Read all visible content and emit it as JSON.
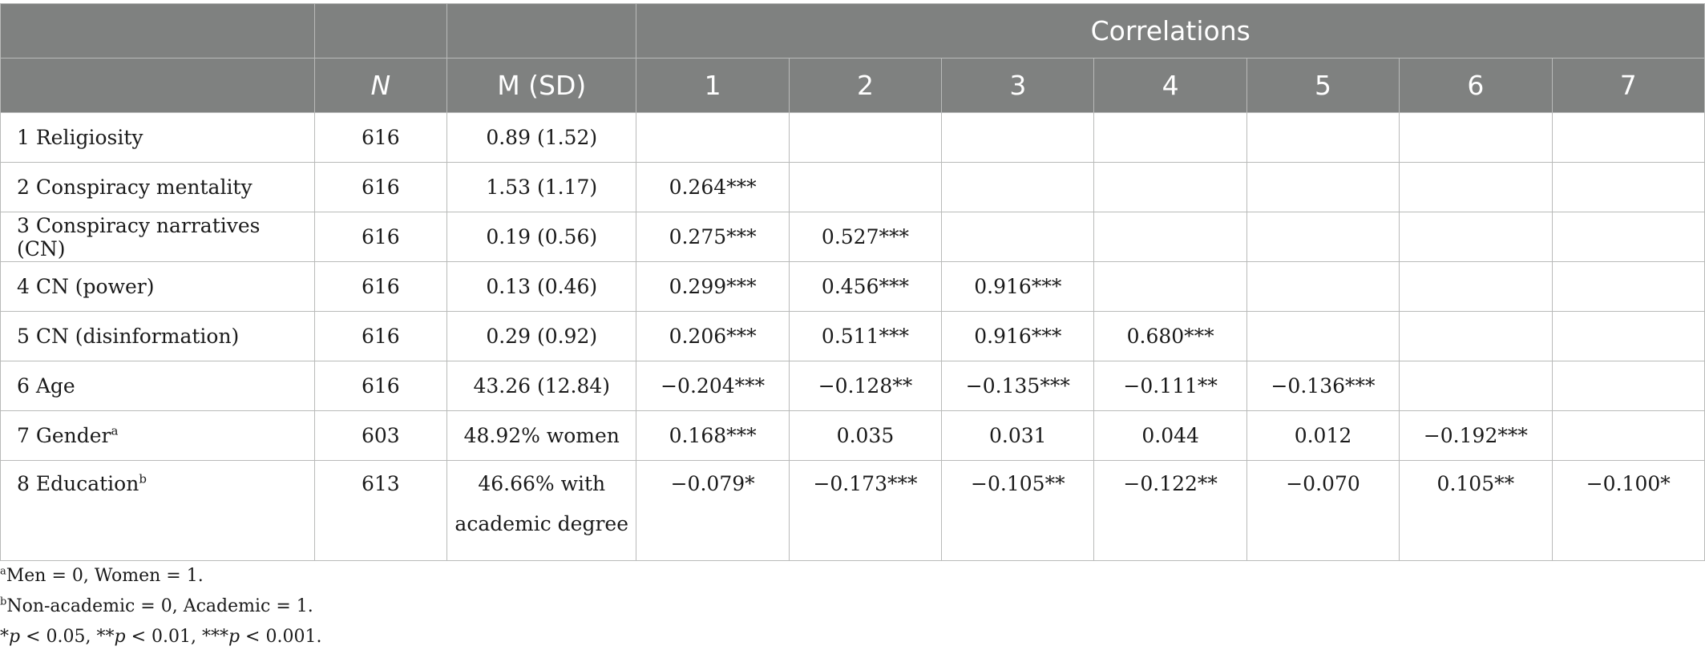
{
  "header": {
    "group_label": "Correlations",
    "n_label": "N",
    "mean_label": "M (SD)",
    "columns": [
      "1",
      "2",
      "3",
      "4",
      "5",
      "6",
      "7"
    ]
  },
  "rows": [
    {
      "label": "1 Religiosity",
      "sup": "",
      "n": "616",
      "mean": "0.89 (1.52)",
      "mean2": "",
      "cells": [
        "",
        "",
        "",
        "",
        "",
        "",
        ""
      ]
    },
    {
      "label": "2 Conspiracy mentality",
      "sup": "",
      "n": "616",
      "mean": "1.53 (1.17)",
      "mean2": "",
      "cells": [
        "0.264***",
        "",
        "",
        "",
        "",
        "",
        ""
      ]
    },
    {
      "label": "3 Conspiracy narratives (CN)",
      "sup": "",
      "n": "616",
      "mean": "0.19 (0.56)",
      "mean2": "",
      "cells": [
        "0.275***",
        "0.527***",
        "",
        "",
        "",
        "",
        ""
      ]
    },
    {
      "label": "4 CN (power)",
      "sup": "",
      "n": "616",
      "mean": "0.13 (0.46)",
      "mean2": "",
      "cells": [
        "0.299***",
        "0.456***",
        "0.916***",
        "",
        "",
        "",
        ""
      ]
    },
    {
      "label": "5 CN (disinformation)",
      "sup": "",
      "n": "616",
      "mean": "0.29 (0.92)",
      "mean2": "",
      "cells": [
        "0.206***",
        "0.511***",
        "0.916***",
        "0.680***",
        "",
        "",
        ""
      ]
    },
    {
      "label": "6 Age",
      "sup": "",
      "n": "616",
      "mean": "43.26 (12.84)",
      "mean2": "",
      "cells": [
        "−0.204***",
        "−0.128**",
        "−0.135***",
        "−0.111**",
        "−0.136***",
        "",
        ""
      ]
    },
    {
      "label": "7 Gender",
      "sup": "a",
      "n": "603",
      "mean": "48.92% women",
      "mean2": "",
      "cells": [
        "0.168***",
        "0.035",
        "0.031",
        "0.044",
        "0.012",
        "−0.192***",
        ""
      ]
    },
    {
      "label": "8 Education",
      "sup": "b",
      "n": "613",
      "mean": "46.66% with",
      "mean2": "academic degree",
      "cells": [
        "−0.079*",
        "−0.173***",
        "−0.105**",
        "−0.122**",
        "−0.070",
        "0.105**",
        "−0.100*"
      ]
    }
  ],
  "notes": {
    "a_sup": "a",
    "a_text": "Men = 0, Women = 1.",
    "b_sup": "b",
    "b_text": "Non-academic = 0, Academic = 1.",
    "sig_parts": [
      "*",
      "p",
      " < 0.05, **",
      "p",
      " < 0.01, ***",
      "p",
      " < 0.001."
    ]
  }
}
